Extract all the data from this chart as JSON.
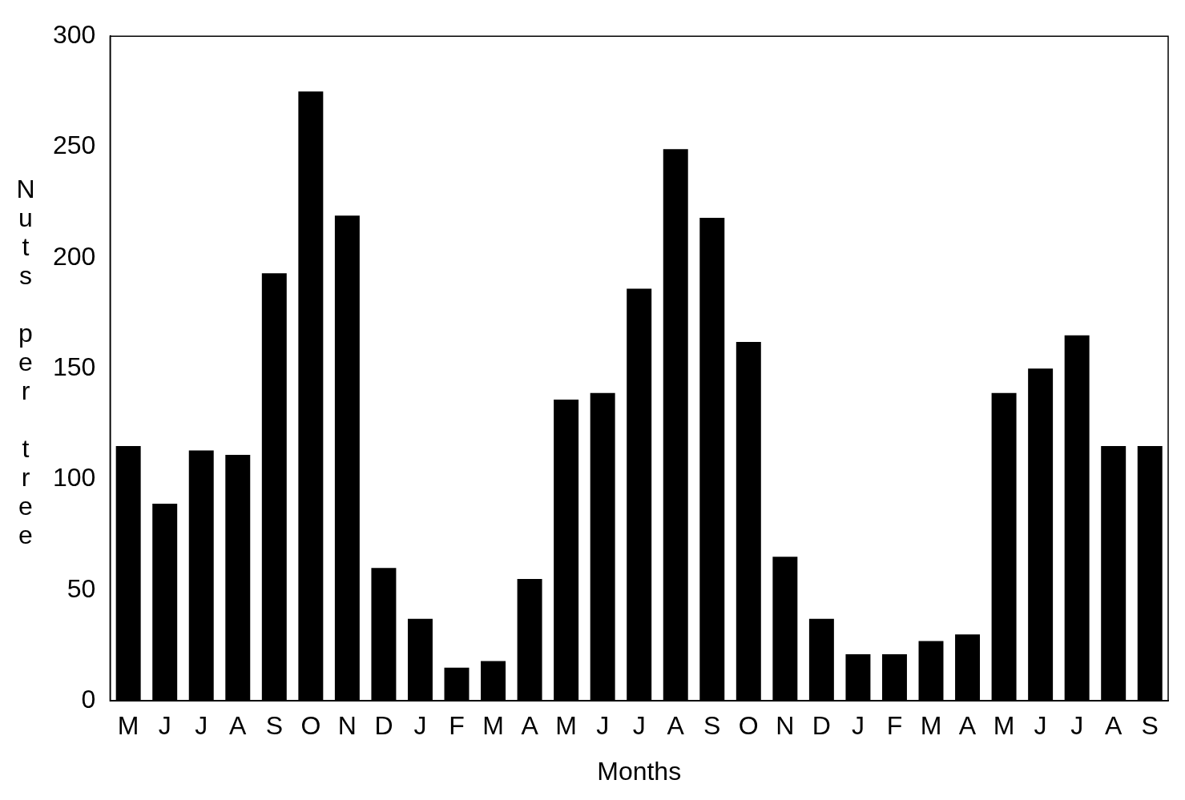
{
  "chart_data": {
    "type": "bar",
    "xlabel": "Months",
    "ylabel": "Nuts per tree",
    "categories": [
      "M",
      "J",
      "J",
      "A",
      "S",
      "O",
      "N",
      "D",
      "J",
      "F",
      "M",
      "A",
      "M",
      "J",
      "J",
      "A",
      "S",
      "O",
      "N",
      "D",
      "J",
      "F",
      "M",
      "A",
      "M",
      "J",
      "J",
      "A",
      "S"
    ],
    "values": [
      115,
      89,
      113,
      111,
      193,
      275,
      219,
      60,
      37,
      15,
      18,
      55,
      136,
      139,
      186,
      249,
      218,
      162,
      65,
      37,
      21,
      21,
      27,
      30,
      139,
      150,
      165,
      115,
      115
    ],
    "color": "#000000",
    "ylim": [
      0,
      300
    ],
    "yticks": [
      0,
      50,
      100,
      150,
      200,
      250,
      300
    ],
    "grid": false,
    "legend": false
  }
}
